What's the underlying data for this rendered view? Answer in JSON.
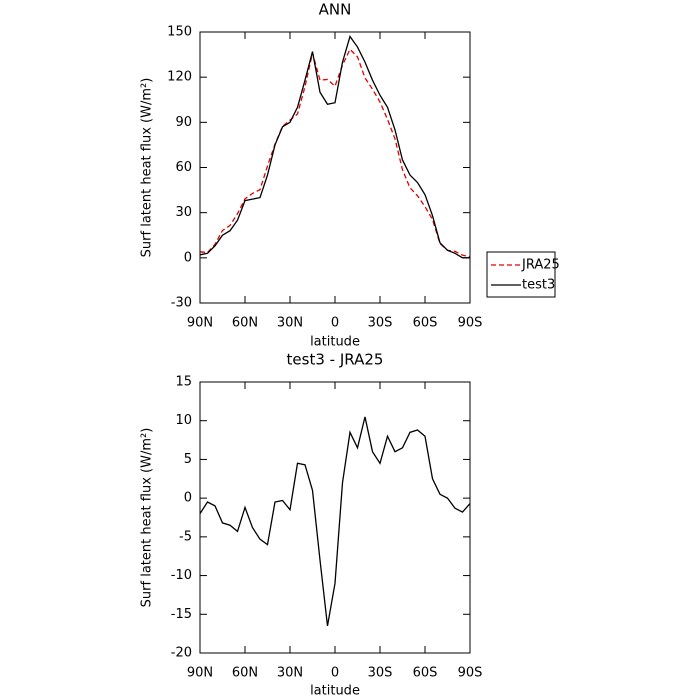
{
  "chart_data": [
    {
      "type": "line",
      "title": "ANN",
      "xlabel": "latitude",
      "ylabel": "Surf latent heat flux (W/m²)",
      "x": [
        90,
        85,
        80,
        75,
        70,
        65,
        60,
        55,
        50,
        45,
        40,
        35,
        30,
        25,
        20,
        15,
        10,
        5,
        0,
        -5,
        -10,
        -15,
        -20,
        -25,
        -30,
        -35,
        -40,
        -45,
        -50,
        -55,
        -60,
        -65,
        -70,
        -75,
        -80,
        -85,
        -90
      ],
      "series": [
        {
          "name": "JRA25",
          "color": "#e00000",
          "dashed": true,
          "values": [
            4,
            3.5,
            9,
            18.2,
            21.5,
            29.3,
            39.2,
            42.8,
            45.3,
            61,
            75.5,
            87.3,
            91.5,
            95.5,
            113.7,
            136,
            118,
            118.5,
            114,
            128,
            138.5,
            133.5,
            119.5,
            112,
            103.5,
            92,
            79,
            58.5,
            46.5,
            41.2,
            34,
            25.5,
            9.5,
            5,
            4.3,
            1.8,
            0.7
          ]
        },
        {
          "name": "test3",
          "color": "#000000",
          "dashed": false,
          "values": [
            2,
            3,
            8,
            15,
            18,
            25,
            38,
            39,
            40,
            55,
            75,
            87,
            90,
            100,
            118,
            137,
            110,
            102,
            103,
            130,
            147,
            140,
            130,
            118,
            108,
            100,
            85,
            65,
            55,
            50,
            42,
            28,
            10,
            5,
            3,
            0,
            0
          ]
        }
      ],
      "xlim": [
        90,
        -90
      ],
      "xticks": [
        {
          "value": 90,
          "label": "90N"
        },
        {
          "value": 60,
          "label": "60N"
        },
        {
          "value": 30,
          "label": "30N"
        },
        0,
        {
          "value": -30,
          "label": "30S"
        },
        {
          "value": -60,
          "label": "60S"
        },
        {
          "value": -90,
          "label": "90S"
        }
      ],
      "ylim": [
        -30,
        150
      ],
      "yticks": [
        -30,
        0,
        30,
        60,
        90,
        120,
        150
      ],
      "legend": "right"
    },
    {
      "type": "line",
      "title": "test3 - JRA25",
      "xlabel": "latitude",
      "ylabel": "Surf latent heat flux (W/m²)",
      "x": [
        90,
        85,
        80,
        75,
        70,
        65,
        60,
        55,
        50,
        45,
        40,
        35,
        30,
        25,
        20,
        15,
        10,
        5,
        0,
        -5,
        -10,
        -15,
        -20,
        -25,
        -30,
        -35,
        -40,
        -45,
        -50,
        -55,
        -60,
        -65,
        -70,
        -75,
        -80,
        -85,
        -90
      ],
      "series": [
        {
          "color": "#000000",
          "dashed": false,
          "values": [
            -2,
            -0.5,
            -1,
            -3.2,
            -3.5,
            -4.3,
            -1.2,
            -3.8,
            -5.3,
            -6,
            -0.5,
            -0.3,
            -1.5,
            4.5,
            4.3,
            1,
            -8,
            -16.5,
            -11,
            2,
            8.5,
            6.5,
            10.5,
            6,
            4.5,
            8,
            6,
            6.5,
            8.5,
            8.8,
            8,
            2.5,
            0.5,
            0,
            -1.3,
            -1.8,
            -0.7
          ]
        }
      ],
      "xlim": [
        90,
        -90
      ],
      "xticks": [
        {
          "value": 90,
          "label": "90N"
        },
        {
          "value": 60,
          "label": "60N"
        },
        {
          "value": 30,
          "label": "30N"
        },
        0,
        {
          "value": -30,
          "label": "30S"
        },
        {
          "value": -60,
          "label": "60S"
        },
        {
          "value": -90,
          "label": "90S"
        }
      ],
      "ylim": [
        -20,
        15
      ],
      "yticks": [
        -20,
        -15,
        -10,
        -5,
        0,
        5,
        10,
        15
      ]
    }
  ]
}
